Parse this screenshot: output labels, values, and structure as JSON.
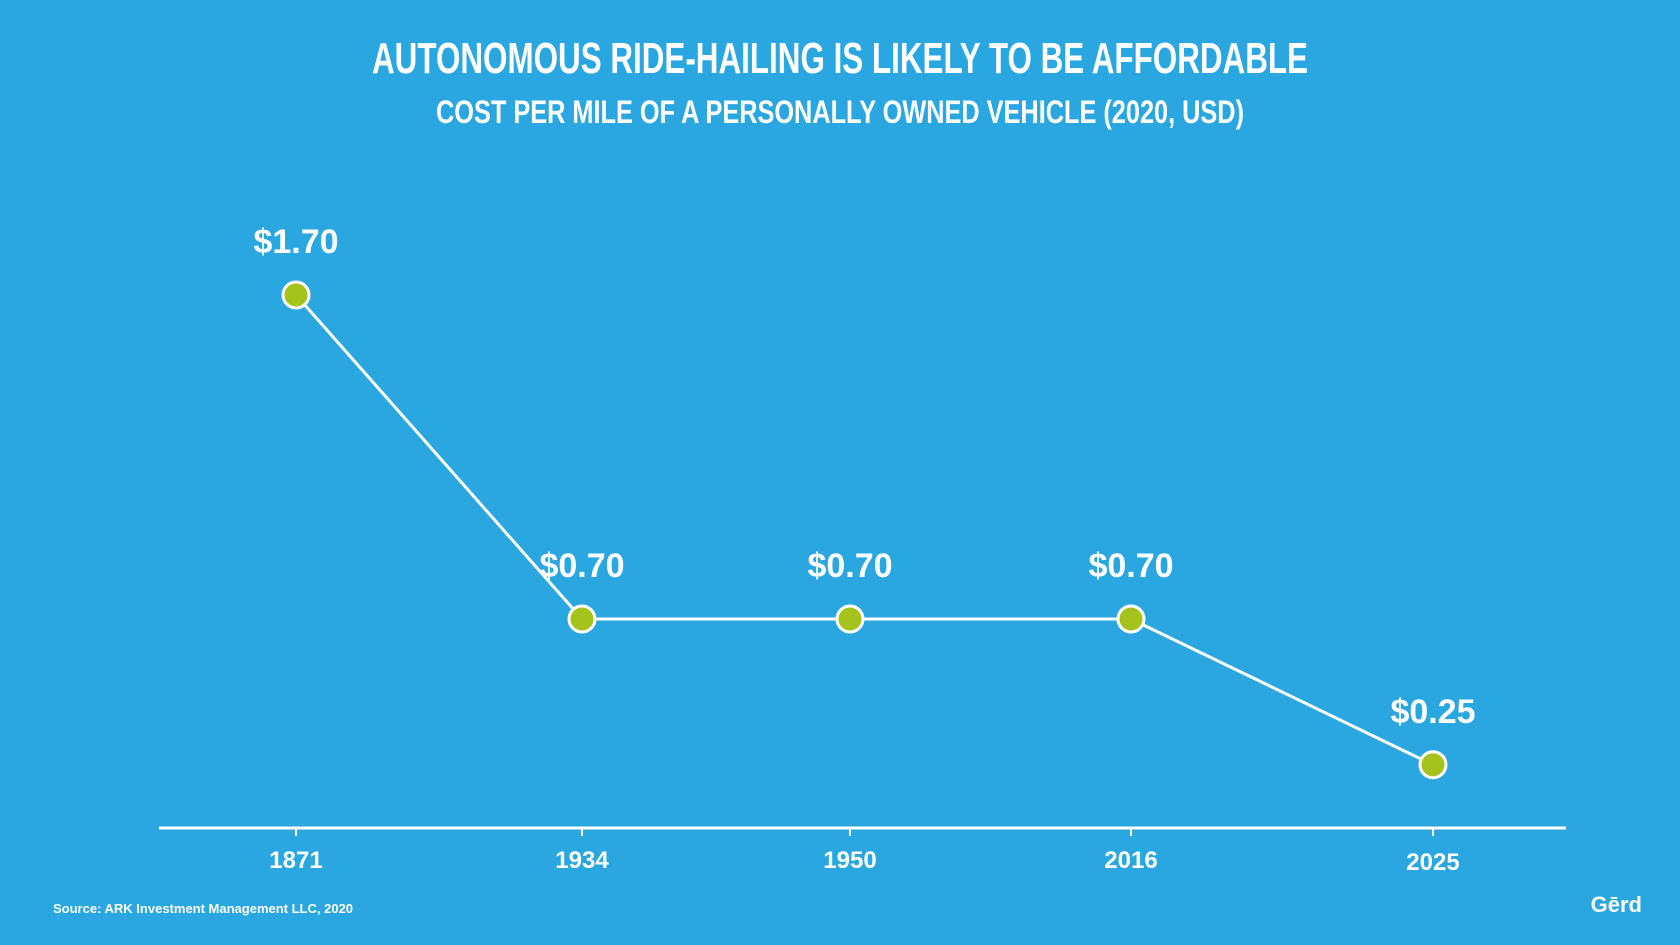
{
  "chart_data": {
    "type": "line",
    "title": "AUTONOMOUS RIDE-HAILING IS LIKELY TO BE AFFORDABLE",
    "subtitle": "COST PER MILE OF A PERSONALLY OWNED VEHICLE (2020, USD)",
    "categories": [
      "1871",
      "1934",
      "1950",
      "2016",
      "2025"
    ],
    "series": [
      {
        "values": [
          1.7,
          0.7,
          0.7,
          0.7,
          0.25
        ],
        "labels": [
          "$1.70",
          "$0.70",
          "$0.70",
          "$0.70",
          "$0.25"
        ]
      }
    ],
    "ylim": [
      0,
      2
    ],
    "grid": false,
    "colors": {
      "background": "#2aa7e0",
      "line": "#ffffff",
      "marker_fill": "#a6c21c",
      "marker_stroke": "#ffffff",
      "text": "#ffffff"
    }
  },
  "source": "Source: ARK Investment Management LLC, 2020",
  "logo": "Gērd"
}
